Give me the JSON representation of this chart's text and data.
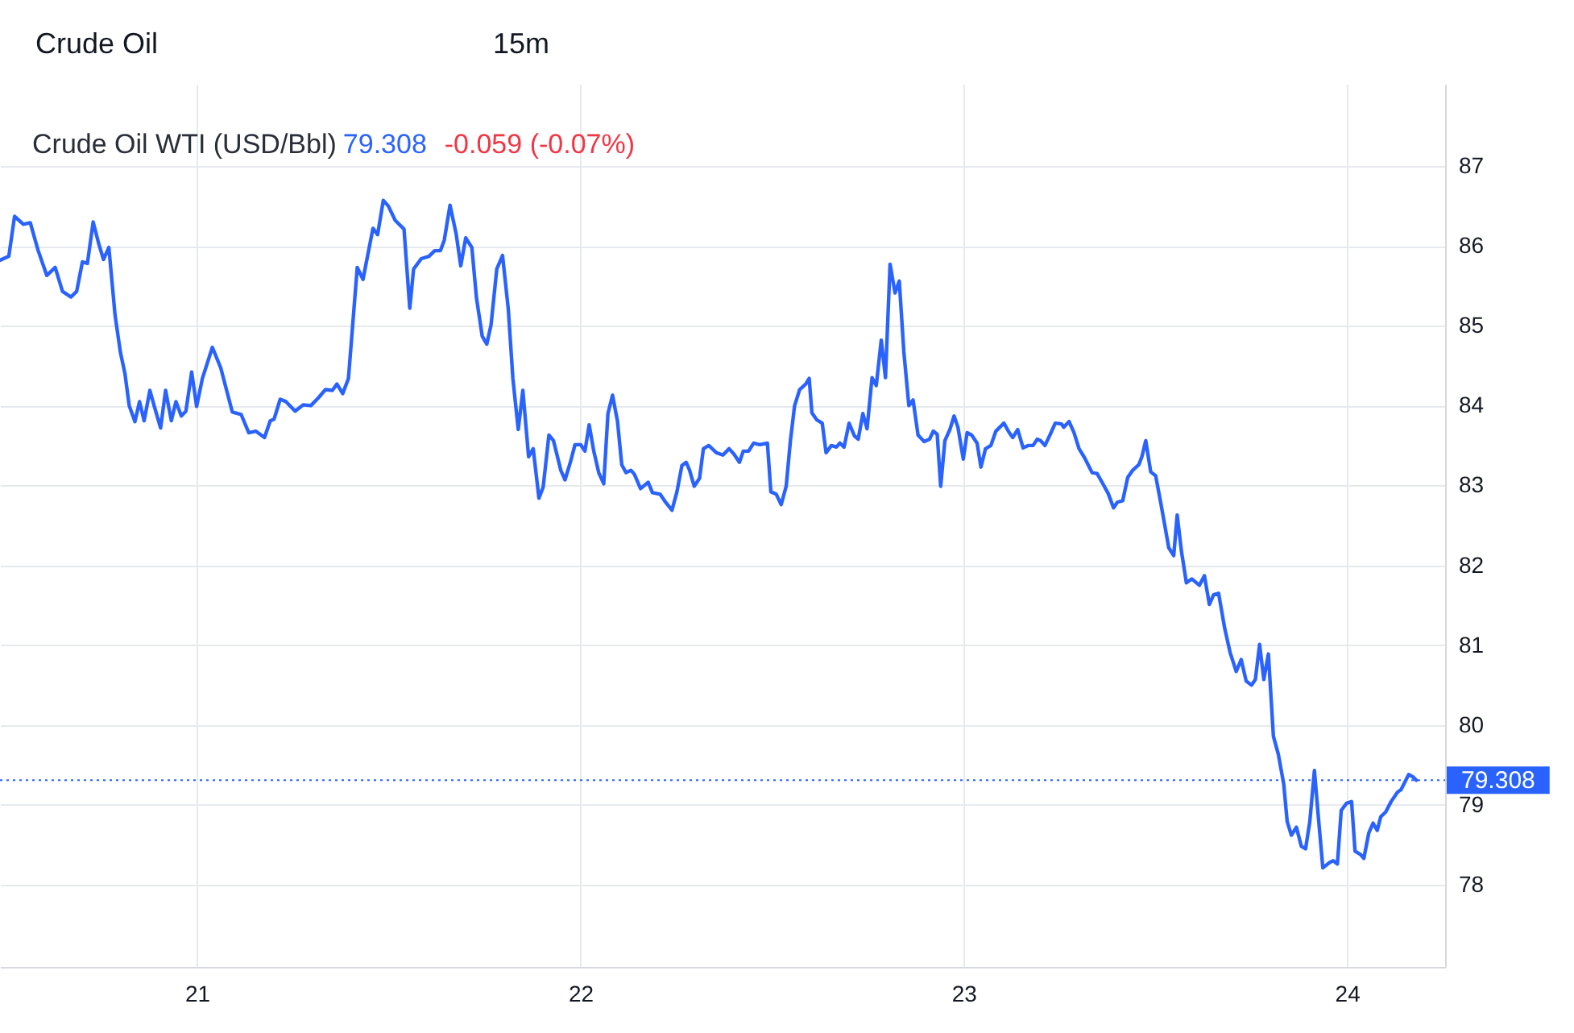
{
  "chart_data": {
    "type": "line",
    "title": "Crude Oil WTI (USD/Bbl)",
    "annotations": [
      "Crude Oil",
      "15m",
      "79.308",
      "-0.059 (-0.07%)"
    ],
    "x": [
      20.486,
      20.509,
      20.524,
      20.547,
      20.565,
      20.585,
      20.608,
      20.63,
      20.649,
      20.671,
      20.686,
      20.701,
      20.714,
      20.729,
      20.744,
      20.756,
      20.77,
      20.786,
      20.8,
      20.812,
      20.823,
      20.838,
      20.85,
      20.862,
      20.877,
      20.888,
      20.905,
      20.918,
      20.933,
      20.945,
      20.959,
      20.971,
      20.986,
      20.999,
      21.014,
      21.04,
      21.062,
      21.092,
      21.115,
      21.135,
      21.153,
      21.176,
      21.191,
      21.201,
      21.217,
      21.232,
      21.256,
      21.277,
      21.297,
      21.317,
      21.335,
      21.353,
      21.365,
      21.38,
      21.395,
      21.418,
      21.433,
      21.459,
      21.471,
      21.486,
      21.499,
      21.517,
      21.54,
      21.555,
      21.565,
      21.585,
      21.605,
      21.62,
      21.635,
      21.645,
      21.66,
      21.676,
      21.688,
      21.701,
      21.717,
      21.729,
      21.744,
      21.756,
      21.767,
      21.782,
      21.797,
      21.812,
      21.824,
      21.838,
      21.85,
      21.865,
      21.877,
      21.892,
      21.903,
      21.918,
      21.93,
      21.949,
      21.96,
      21.974,
      21.986,
      22.001,
      22.012,
      22.023,
      22.035,
      22.048,
      22.061,
      22.072,
      22.084,
      22.097,
      22.108,
      22.119,
      22.132,
      22.141,
      22.157,
      22.177,
      22.188,
      22.208,
      22.221,
      22.239,
      22.252,
      22.265,
      22.276,
      22.285,
      22.297,
      22.311,
      22.321,
      22.335,
      22.355,
      22.372,
      22.388,
      22.401,
      22.415,
      22.425,
      22.439,
      22.452,
      22.468,
      22.488,
      22.497,
      22.511,
      22.524,
      22.537,
      22.548,
      22.559,
      22.572,
      22.588,
      22.597,
      22.604,
      22.617,
      22.631,
      22.641,
      22.655,
      22.668,
      22.677,
      22.688,
      22.701,
      22.715,
      22.725,
      22.737,
      22.748,
      22.761,
      22.772,
      22.785,
      22.796,
      22.808,
      22.821,
      22.832,
      22.844,
      22.857,
      22.868,
      22.881,
      22.897,
      22.911,
      22.921,
      22.931,
      22.94,
      22.951,
      22.964,
      22.975,
      22.985,
      22.999,
      23.009,
      23.021,
      23.035,
      23.045,
      23.057,
      23.071,
      23.084,
      23.105,
      23.119,
      23.128,
      23.141,
      23.155,
      23.168,
      23.181,
      23.192,
      23.201,
      23.212,
      23.225,
      23.239,
      23.255,
      23.261,
      23.275,
      23.288,
      23.301,
      23.315,
      23.335,
      23.348,
      23.361,
      23.377,
      23.391,
      23.401,
      23.415,
      23.428,
      23.441,
      23.457,
      23.465,
      23.475,
      23.488,
      23.501,
      23.515,
      23.524,
      23.535,
      23.548,
      23.557,
      23.568,
      23.581,
      23.595,
      23.615,
      23.628,
      23.641,
      23.652,
      23.665,
      23.681,
      23.695,
      23.711,
      23.724,
      23.737,
      23.751,
      23.761,
      23.772,
      23.783,
      23.795,
      23.808,
      23.821,
      23.835,
      23.844,
      23.855,
      23.868,
      23.881,
      23.892,
      23.903,
      23.915,
      23.924,
      23.937,
      23.955,
      23.964,
      23.975,
      23.985,
      23.999,
      24.012,
      24.021,
      24.035,
      24.044,
      24.057,
      24.068,
      24.079,
      24.088,
      24.101,
      24.115,
      24.132,
      24.141,
      24.161,
      24.172,
      24.181
    ],
    "series": [
      {
        "color": "#2962ff",
        "values": [
          85.82,
          85.87,
          86.37,
          86.27,
          86.29,
          85.95,
          85.63,
          85.73,
          85.43,
          85.36,
          85.43,
          85.8,
          85.78,
          86.3,
          86.02,
          85.83,
          85.98,
          85.14,
          84.67,
          84.4,
          84.0,
          83.8,
          84.05,
          83.81,
          84.19,
          84.0,
          83.72,
          84.19,
          83.81,
          84.05,
          83.87,
          83.93,
          84.42,
          83.99,
          84.34,
          84.73,
          84.47,
          83.92,
          83.89,
          83.66,
          83.68,
          83.6,
          83.81,
          83.83,
          84.08,
          84.05,
          83.93,
          84.01,
          84.0,
          84.1,
          84.2,
          84.19,
          84.27,
          84.15,
          84.34,
          85.73,
          85.58,
          86.22,
          86.14,
          86.57,
          86.5,
          86.32,
          86.21,
          85.22,
          85.71,
          85.84,
          85.87,
          85.94,
          85.94,
          86.07,
          86.51,
          86.15,
          85.75,
          86.1,
          85.98,
          85.35,
          84.87,
          84.77,
          85.01,
          85.71,
          85.88,
          85.21,
          84.34,
          83.7,
          84.19,
          83.36,
          83.46,
          82.84,
          82.98,
          83.63,
          83.56,
          83.19,
          83.07,
          83.29,
          83.51,
          83.51,
          83.43,
          83.76,
          83.43,
          83.16,
          83.02,
          83.9,
          84.13,
          83.8,
          83.26,
          83.16,
          83.19,
          83.14,
          82.96,
          83.04,
          82.91,
          82.89,
          82.8,
          82.69,
          82.92,
          83.25,
          83.29,
          83.19,
          82.99,
          83.09,
          83.46,
          83.5,
          83.41,
          83.38,
          83.46,
          83.39,
          83.29,
          83.43,
          83.43,
          83.53,
          83.51,
          83.53,
          82.92,
          82.89,
          82.76,
          82.99,
          83.56,
          84.0,
          84.2,
          84.27,
          84.34,
          83.91,
          83.82,
          83.78,
          83.41,
          83.5,
          83.48,
          83.53,
          83.48,
          83.78,
          83.62,
          83.58,
          83.9,
          83.71,
          84.35,
          84.25,
          84.82,
          84.35,
          85.77,
          85.41,
          85.56,
          84.67,
          84.0,
          84.07,
          83.63,
          83.55,
          83.58,
          83.68,
          83.64,
          82.99,
          83.56,
          83.7,
          83.87,
          83.73,
          83.33,
          83.66,
          83.63,
          83.53,
          83.23,
          83.46,
          83.5,
          83.68,
          83.78,
          83.66,
          83.6,
          83.7,
          83.47,
          83.5,
          83.5,
          83.58,
          83.56,
          83.5,
          83.63,
          83.78,
          83.77,
          83.73,
          83.8,
          83.66,
          83.46,
          83.35,
          83.16,
          83.15,
          83.04,
          82.9,
          82.72,
          82.79,
          82.81,
          83.1,
          83.19,
          83.26,
          83.36,
          83.56,
          83.17,
          83.12,
          82.76,
          82.52,
          82.22,
          82.12,
          82.63,
          82.18,
          81.78,
          81.83,
          81.75,
          81.87,
          81.51,
          81.63,
          81.65,
          81.21,
          80.91,
          80.67,
          80.82,
          80.55,
          80.5,
          80.57,
          81.01,
          80.57,
          80.89,
          79.86,
          79.63,
          79.26,
          78.79,
          78.62,
          78.72,
          78.48,
          78.45,
          78.79,
          79.43,
          78.92,
          78.21,
          78.28,
          78.3,
          78.26,
          78.93,
          79.02,
          79.04,
          78.42,
          78.38,
          78.33,
          78.65,
          78.77,
          78.68,
          78.85,
          78.91,
          79.04,
          79.16,
          79.19,
          79.38,
          79.35,
          79.308
        ]
      }
    ],
    "xlim": [
      20.486,
      24.256
    ],
    "xticks": [
      21,
      22,
      23,
      24
    ],
    "ylim": [
      76.97,
      88.03
    ],
    "yticks": [
      78,
      79,
      80,
      81,
      82,
      83,
      84,
      85,
      86,
      87
    ],
    "grid": true,
    "ref_lines": [
      {
        "axis": "y",
        "value": 79.308,
        "label": "79.308",
        "color": "#2962ff",
        "line_style": "dotted"
      }
    ]
  }
}
